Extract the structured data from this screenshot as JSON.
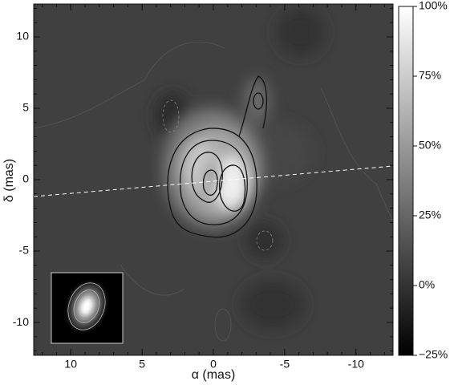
{
  "chart_data": {
    "type": "image",
    "xlabel": "α (mas)",
    "ylabel": "δ (mas)",
    "xlim": [
      12.6,
      -12.6
    ],
    "xticks": [
      10,
      5,
      0,
      -5,
      -10
    ],
    "ylim": [
      -12.3,
      12.3
    ],
    "yticks": [
      -10,
      -5,
      0,
      5,
      10
    ],
    "clim": [
      -25,
      100
    ],
    "cticks": [
      {
        "value": -25,
        "label": "−25%"
      },
      {
        "value": 0,
        "label": "0%"
      },
      {
        "value": 25,
        "label": "25%"
      },
      {
        "value": 50,
        "label": "50%"
      },
      {
        "value": 75,
        "label": "75%"
      },
      {
        "value": 100,
        "label": "100%"
      }
    ]
  }
}
